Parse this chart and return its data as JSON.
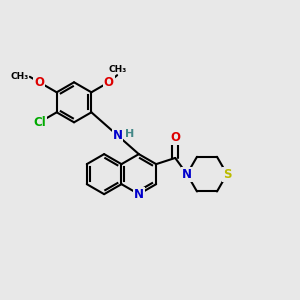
{
  "background_color": "#e8e8e8",
  "bond_color": "#000000",
  "atom_colors": {
    "N": "#0000cc",
    "O": "#dd0000",
    "S": "#bbbb00",
    "Cl": "#00aa00",
    "H": "#448888",
    "C": "#000000"
  },
  "figsize": [
    3.0,
    3.0
  ],
  "dpi": 100,
  "bl": 0.068
}
